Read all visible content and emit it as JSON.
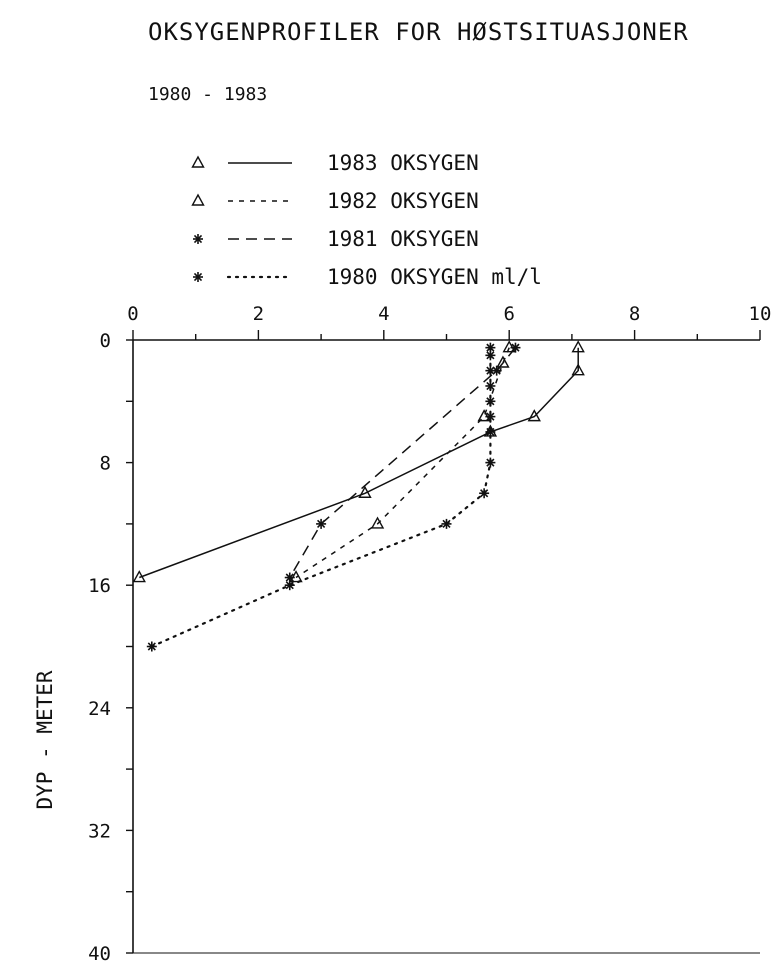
{
  "chart_data": {
    "type": "line",
    "title": "OKSYGENPROFILER FOR HØSTSITUASJONER",
    "subtitle": "1980 - 1983",
    "ylabel": "DYP - METER",
    "xlabel": "",
    "xlim": [
      0,
      10
    ],
    "ylim": [
      0,
      40
    ],
    "y_inverted": true,
    "x_axis_position": "top",
    "x_ticks": [
      0,
      2,
      4,
      6,
      8,
      10
    ],
    "y_ticks": [
      0,
      8,
      16,
      24,
      32,
      40
    ],
    "x_tick_labels": [
      "0",
      "2",
      "4",
      "6",
      "8",
      "10"
    ],
    "y_tick_labels": [
      "0",
      "8",
      "16",
      "24",
      "32",
      "40"
    ],
    "grid": false,
    "legend_position": "top",
    "series": [
      {
        "name": "1983 OKSYGEN",
        "marker": "triangle",
        "style": "solid",
        "points": [
          [
            7.1,
            0.5
          ],
          [
            7.1,
            2
          ],
          [
            6.4,
            5
          ],
          [
            5.7,
            6
          ],
          [
            3.7,
            10
          ],
          [
            0.1,
            15.5
          ]
        ]
      },
      {
        "name": "1982 OKSYGEN",
        "marker": "triangle",
        "style": "dashed-short",
        "points": [
          [
            6.0,
            0.5
          ],
          [
            5.9,
            1.5
          ],
          [
            5.6,
            5
          ],
          [
            3.9,
            12
          ],
          [
            2.6,
            15.5
          ]
        ]
      },
      {
        "name": "1981 OKSYGEN",
        "marker": "star",
        "style": "dashed",
        "points": [
          [
            6.1,
            0.5
          ],
          [
            5.8,
            2
          ],
          [
            3.0,
            12
          ],
          [
            2.5,
            15.5
          ]
        ]
      },
      {
        "name": "1980 OKSYGEN ml/l",
        "marker": "star",
        "style": "dotted",
        "points": [
          [
            5.7,
            0.5
          ],
          [
            5.7,
            1
          ],
          [
            5.7,
            2
          ],
          [
            5.7,
            3
          ],
          [
            5.7,
            4
          ],
          [
            5.7,
            5
          ],
          [
            5.7,
            6
          ],
          [
            5.7,
            8
          ],
          [
            5.6,
            10
          ],
          [
            5.0,
            12
          ],
          [
            2.5,
            16
          ],
          [
            0.3,
            20
          ]
        ]
      }
    ]
  }
}
